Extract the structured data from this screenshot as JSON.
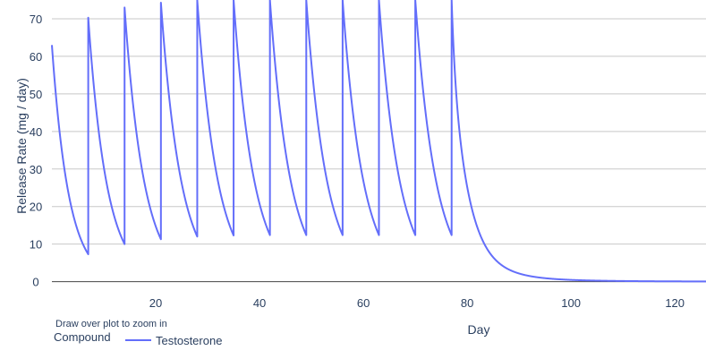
{
  "chart_data": {
    "type": "line",
    "xlabel": "Day",
    "ylabel": "Release Rate (mg / day)",
    "xlim": [
      0,
      126
    ],
    "ylim": [
      -2,
      75
    ],
    "x_ticks": [
      20,
      40,
      60,
      80,
      100,
      120
    ],
    "y_ticks": [
      0,
      10,
      20,
      30,
      40,
      50,
      60,
      70
    ],
    "grid": "horizontal",
    "legend_title": "Compound",
    "legend_position": "bottom-left",
    "color": "#636efa",
    "series": [
      {
        "name": "Testosterone",
        "injection_days": [
          0,
          7,
          14,
          21,
          28,
          35,
          42,
          49,
          56,
          63,
          70,
          77
        ],
        "peaks": [
          63,
          70.3,
          73,
          74.3,
          75,
          75,
          75,
          75,
          75,
          75,
          75,
          75
        ],
        "troughs": [
          7.3,
          10,
          11.3,
          12,
          12.3,
          12.4,
          12.4,
          12.4,
          12.4,
          12.4,
          12.4
        ],
        "x": [
          0,
          7,
          7,
          14,
          14,
          21,
          21,
          28,
          28,
          35,
          35,
          42,
          42,
          49,
          49,
          56,
          56,
          63,
          63,
          70,
          70,
          77,
          77,
          80,
          85,
          90,
          100,
          110,
          126
        ],
        "y": [
          63,
          7.3,
          70.3,
          10,
          73,
          11.3,
          74.3,
          12,
          75,
          12.3,
          75,
          12.4,
          75,
          12.4,
          75,
          12.4,
          75,
          12.4,
          75,
          12.4,
          75,
          12.4,
          75,
          20,
          9,
          5,
          2,
          1,
          0.2
        ]
      }
    ]
  },
  "ui": {
    "zoom_hint": "Draw over plot to zoom in",
    "legend_title": "Compound",
    "series_label": "Testosterone"
  }
}
